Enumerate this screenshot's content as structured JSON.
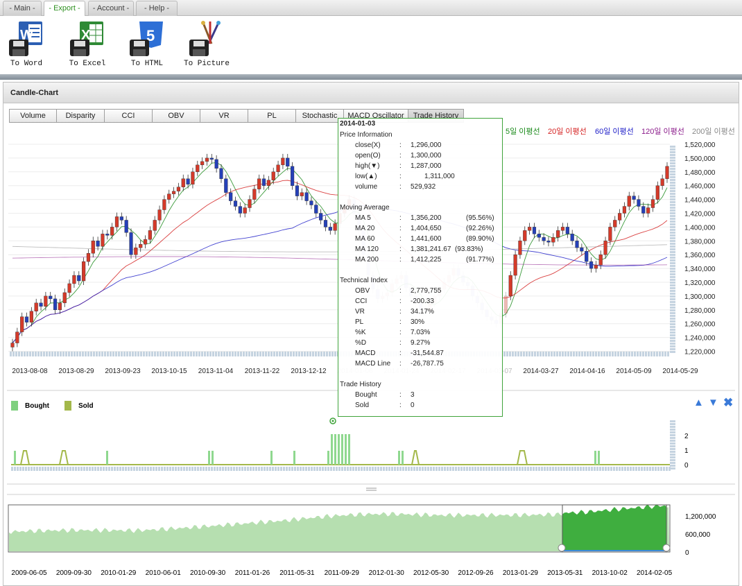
{
  "menu": {
    "tabs": [
      {
        "label": "- Main -"
      },
      {
        "label": "- Export -"
      },
      {
        "label": "- Account -"
      },
      {
        "label": "- Help -"
      }
    ]
  },
  "toolbar": {
    "items": [
      {
        "label": "To Word",
        "icon": "word-save-icon"
      },
      {
        "label": "To Excel",
        "icon": "excel-save-icon"
      },
      {
        "label": "To HTML",
        "icon": "html5-save-icon"
      },
      {
        "label": "To Picture",
        "icon": "picture-save-icon"
      }
    ]
  },
  "panel": {
    "title": "Candle-Chart",
    "indicator_tabs": [
      "Volume",
      "Disparity",
      "CCI",
      "OBV",
      "VR",
      "PL",
      "Stochastic",
      "MACD Oscillator",
      "Trade History"
    ],
    "active_indicator": "Trade History",
    "ma_legend": [
      {
        "label": "5일 이평선",
        "color": "#1a8a1a"
      },
      {
        "label": "20일 이평선",
        "color": "#d42020"
      },
      {
        "label": "60일 이평선",
        "color": "#2020c8"
      },
      {
        "label": "120일 이평선",
        "color": "#8a1a8a"
      },
      {
        "label": "200일 이평선",
        "color": "#888888"
      }
    ]
  },
  "price_chart": {
    "y_ticks": [
      "1,520,000",
      "1,500,000",
      "1,480,000",
      "1,460,000",
      "1,440,000",
      "1,420,000",
      "1,400,000",
      "1,380,000",
      "1,360,000",
      "1,340,000",
      "1,320,000",
      "1,300,000",
      "1,280,000",
      "1,260,000",
      "1,240,000",
      "1,220,000"
    ],
    "x_ticks": [
      "2013-08-08",
      "2013-08-29",
      "2013-09-23",
      "2013-10-15",
      "2013-11-04",
      "2013-11-22",
      "2013-12-12",
      "2014-01-06",
      "2014-01-24",
      "2014-02-17",
      "2014-03-07",
      "2014-03-27",
      "2014-04-16",
      "2014-05-09",
      "2014-05-29"
    ]
  },
  "trade_chart": {
    "legend": [
      {
        "label": "Bought",
        "color": "#7fd07f"
      },
      {
        "label": "Sold",
        "color": "#a3b84a"
      }
    ],
    "y_ticks": [
      "2",
      "1",
      "0"
    ]
  },
  "overview_chart": {
    "y_ticks": [
      "1,200,000",
      "600,000",
      "0"
    ],
    "x_ticks": [
      "2009-06-05",
      "2009-09-30",
      "2010-01-29",
      "2010-06-01",
      "2010-09-30",
      "2011-01-26",
      "2011-05-31",
      "2011-09-29",
      "2012-01-30",
      "2012-05-30",
      "2012-09-26",
      "2013-01-29",
      "2013-05-31",
      "2013-10-02",
      "2014-02-05"
    ]
  },
  "tooltip": {
    "date": "2014-01-03",
    "price_heading": "Price Information",
    "price": [
      {
        "label": "close(X)",
        "value": "1,296,000",
        "pct": ""
      },
      {
        "label": "open(O)",
        "value": "1,300,000",
        "pct": ""
      },
      {
        "label": "high(▼)",
        "value": "1,287,000",
        "pct": ""
      },
      {
        "label": "low(▲)",
        "value": "1,311,000",
        "pct": ""
      },
      {
        "label": "volume",
        "value": "529,932",
        "pct": ""
      }
    ],
    "ma_heading": "Moving Average",
    "ma": [
      {
        "label": "MA  5",
        "value": "1,356,200",
        "pct": "(95.56%)"
      },
      {
        "label": "MA  20",
        "value": "1,404,650",
        "pct": "(92.26%)"
      },
      {
        "label": "MA  60",
        "value": "1,441,600",
        "pct": "(89.90%)"
      },
      {
        "label": "MA 120",
        "value": "1,381,241.67",
        "pct": "(93.83%)"
      },
      {
        "label": "MA 200",
        "value": "1,412,225",
        "pct": "(91.77%)"
      }
    ],
    "tech_heading": "Technical Index",
    "tech": [
      {
        "label": "OBV",
        "value": "2,779,755"
      },
      {
        "label": "CCI",
        "value": "-200.33"
      },
      {
        "label": "VR",
        "value": "34.17%"
      },
      {
        "label": "PL",
        "value": "30%"
      },
      {
        "label": "%K",
        "value": "7.03%"
      },
      {
        "label": "%D",
        "value": "9.27%"
      },
      {
        "label": "MACD",
        "value": "-31,544.87"
      },
      {
        "label": "MACD Line",
        "value": "-26,787.75"
      }
    ],
    "trade_heading": "Trade History",
    "trade": [
      {
        "label": "Bought",
        "value": "3"
      },
      {
        "label": "Sold",
        "value": "0"
      }
    ]
  },
  "colors": {
    "up": "#d43a2a",
    "down": "#2540b8",
    "accent": "#3fa33a"
  }
}
